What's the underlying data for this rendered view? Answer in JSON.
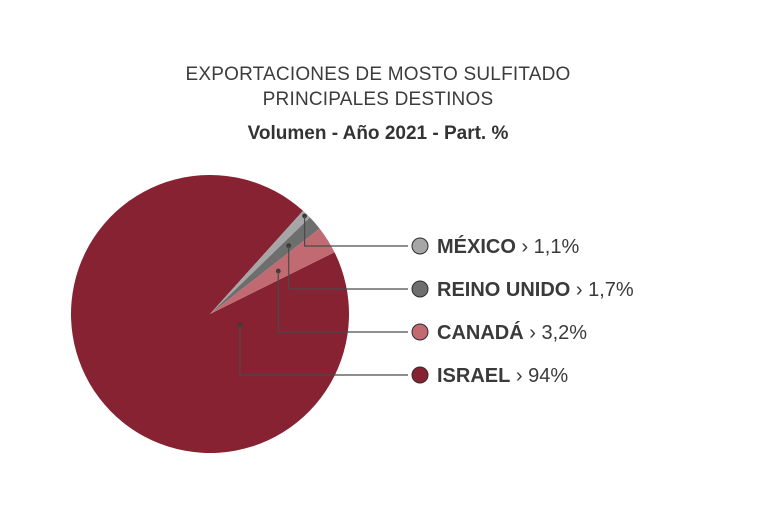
{
  "chart_data": {
    "type": "pie",
    "title_lines": [
      "EXPORTACIONES DE MOSTO SULFITADO",
      "PRINCIPALES DESTINOS"
    ],
    "subtitle": "Volumen - Año 2021  - Part. %",
    "slices": [
      {
        "name": "MÉXICO",
        "value": 1.1,
        "display": "1,1%",
        "color": "#a6a6a6"
      },
      {
        "name": "REINO UNIDO",
        "value": 1.7,
        "display": "1,7%",
        "color": "#6e6e6e"
      },
      {
        "name": "CANADÁ",
        "value": 3.2,
        "display": "3,2%",
        "color": "#c26a72"
      },
      {
        "name": "ISRAEL",
        "value": 94,
        "display": "94%",
        "color": "#862231"
      }
    ],
    "separator": " › "
  }
}
